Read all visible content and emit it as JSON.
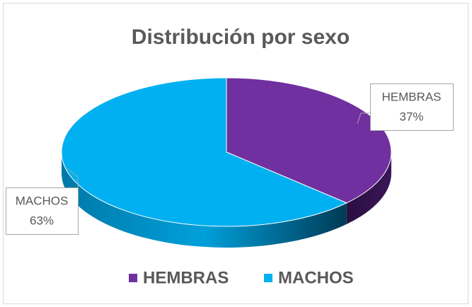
{
  "chart_data": {
    "type": "pie3d",
    "title": "Distribución por sexo",
    "categories": [
      "HEMBRAS",
      "MACHOS"
    ],
    "values": [
      37,
      63
    ],
    "value_labels": [
      "37%",
      "63%"
    ],
    "colors": [
      "#7030a0",
      "#00b0f0"
    ],
    "legend": "bottom"
  }
}
